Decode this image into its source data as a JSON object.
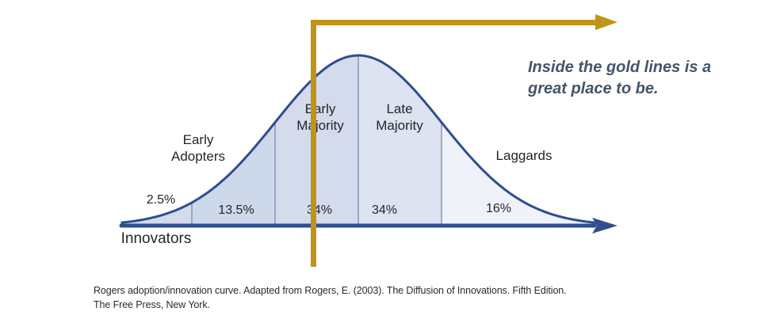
{
  "chart_data": {
    "type": "area",
    "title": "Rogers adoption/innovation curve",
    "categories": [
      "Innovators",
      "Early Adopters",
      "Early Majority",
      "Late Majority",
      "Laggards"
    ],
    "values": [
      2.5,
      13.5,
      34,
      34,
      16
    ],
    "value_labels": [
      "2.5%",
      "13.5%",
      "34%",
      "34%",
      "16%"
    ],
    "curve": "gaussian bell curve over adoption timeline",
    "segment_boundaries_sigma": [
      -2,
      -1,
      0,
      1
    ],
    "xlabel": "",
    "ylabel": "",
    "annotation": "Inside the gold lines is a great place to be.",
    "legend": "none",
    "grid": false
  },
  "labels": {
    "innovators": "Innovators",
    "early_adopters": "Early\nAdopters",
    "early_majority": "Early\nMajority",
    "late_majority": "Late\nMajority",
    "laggards": "Laggards",
    "pct_innovators": "2.5%",
    "pct_early_adopters": "13.5%",
    "pct_early_majority": "34%",
    "pct_late_majority": "34%",
    "pct_laggards": "16%"
  },
  "annotation": {
    "text": "Inside the gold lines is a\ngreat place to be."
  },
  "caption": {
    "text": "Rogers adoption/innovation curve. Adapted from Rogers, E. (2003). The Diffusion of Innovations. Fifth Edition.\nThe Free Press, New York."
  },
  "colors": {
    "gold": "#C0941A",
    "curve_stroke": "#2E4E8E",
    "axis": "#2E4E8E",
    "divider": "#8596B8",
    "segment_fills": [
      "#D2DBEC",
      "#CDD8EA",
      "#D3DBEC",
      "#DDE3F0",
      "#EFF2F9"
    ],
    "annotation_text": "#44546A",
    "label_text": "#262626",
    "caption_text": "#2B2B2B"
  }
}
